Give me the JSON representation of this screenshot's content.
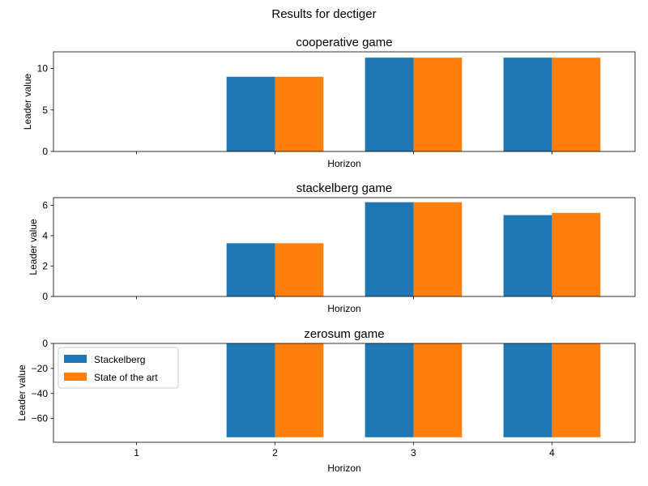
{
  "figure": {
    "suptitle": "Results for dectiger"
  },
  "colors": {
    "stackelberg": "#1f77b4",
    "state_of_the_art": "#ff7f0e"
  },
  "chart_data": [
    {
      "type": "bar",
      "title": "cooperative game",
      "xlabel": "Horizon",
      "ylabel": "Leader value",
      "categories": [
        "1",
        "2",
        "3",
        "4"
      ],
      "show_xticklabels": false,
      "ylim": [
        0,
        12
      ],
      "yticks": [
        0,
        5,
        10
      ],
      "series": [
        {
          "name": "Stackelberg",
          "values": [
            0,
            9.0,
            11.3,
            11.3
          ]
        },
        {
          "name": "State of the art",
          "values": [
            0,
            9.0,
            11.3,
            11.3
          ]
        }
      ],
      "legend": null
    },
    {
      "type": "bar",
      "title": "stackelberg game",
      "xlabel": "Horizon",
      "ylabel": "Leader value",
      "categories": [
        "1",
        "2",
        "3",
        "4"
      ],
      "show_xticklabels": false,
      "ylim": [
        0,
        6.5
      ],
      "yticks": [
        0,
        2,
        4,
        6
      ],
      "series": [
        {
          "name": "Stackelberg",
          "values": [
            0,
            3.5,
            6.2,
            5.35
          ]
        },
        {
          "name": "State of the art",
          "values": [
            0,
            3.5,
            6.2,
            5.5
          ]
        }
      ],
      "legend": null
    },
    {
      "type": "bar",
      "title": "zerosum game",
      "xlabel": "Horizon",
      "ylabel": "Leader value",
      "categories": [
        "1",
        "2",
        "3",
        "4"
      ],
      "show_xticklabels": true,
      "ylim": [
        -79,
        0
      ],
      "yticks": [
        -60,
        -40,
        -20,
        0
      ],
      "series": [
        {
          "name": "Stackelberg",
          "values": [
            0,
            -75,
            -75,
            -75
          ]
        },
        {
          "name": "State of the art",
          "values": [
            0,
            -75,
            -75,
            -75
          ]
        }
      ],
      "legend": "upper-left"
    }
  ]
}
